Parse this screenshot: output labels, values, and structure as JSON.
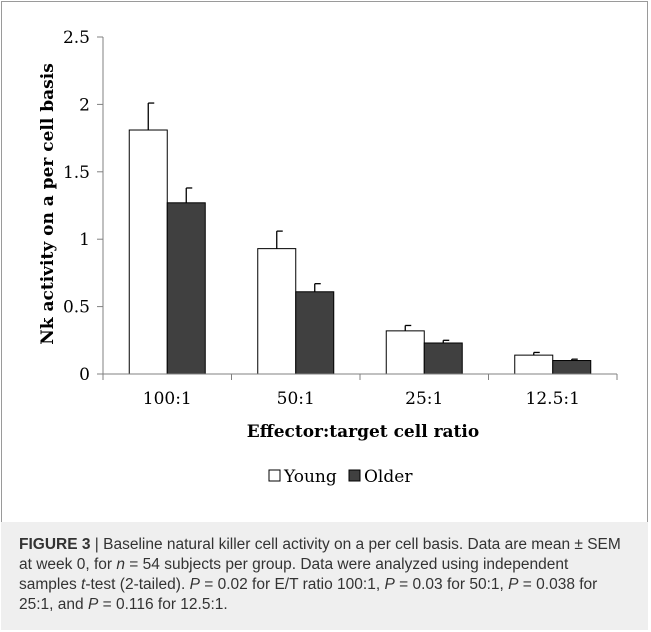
{
  "chart_data": {
    "type": "bar",
    "title": "",
    "categories": [
      "100:1",
      "50:1",
      "25:1",
      "12.5:1"
    ],
    "series": [
      {
        "name": "Young",
        "values": [
          1.81,
          0.93,
          0.32,
          0.14
        ],
        "errors": [
          0.2,
          0.13,
          0.04,
          0.02
        ],
        "color": "#ffffff"
      },
      {
        "name": "Older",
        "values": [
          1.27,
          0.61,
          0.23,
          0.1
        ],
        "errors": [
          0.11,
          0.06,
          0.02,
          0.01
        ],
        "color": "#404040"
      }
    ],
    "xlabel": "Effector:target cell ratio",
    "ylabel": "Nk activity on a per cell basis",
    "ylim": [
      0,
      2.5
    ],
    "yticks": [
      "0",
      "0.5",
      "1",
      "1.5",
      "2",
      "2.5"
    ],
    "grid": false,
    "legend_position": "bottom"
  },
  "caption": {
    "figure_label": "FIGURE 3",
    "separator": " | ",
    "text_1": "Baseline natural killer cell activity on a per cell basis. Data are mean ± SEM at week 0, for ",
    "n_var": "n",
    "text_2": " = 54 subjects per group. Data were analyzed using independent samples ",
    "t_var": "t",
    "text_3": "-test (2-tailed). ",
    "p1": "P",
    "text_4": " = 0.02 for E/T ratio 100:1, ",
    "p2": "P",
    "text_5": " = 0.03 for 50:1, ",
    "p3": "P",
    "text_6": " = 0.038 for 25:1, and ",
    "p4": "P",
    "text_7": " = 0.116 for 12.5:1."
  }
}
